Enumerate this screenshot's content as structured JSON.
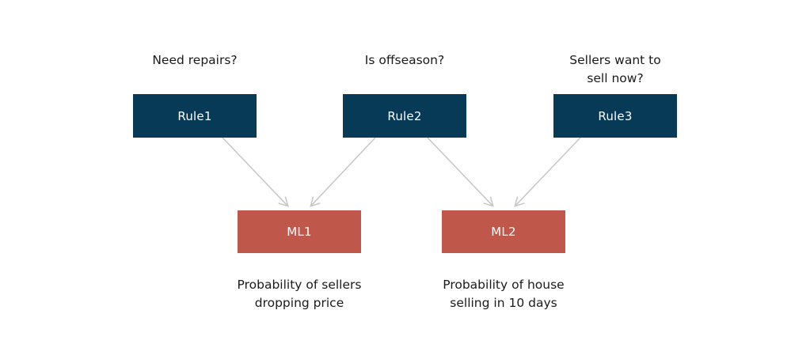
{
  "questions": {
    "q1": "Need repairs?",
    "q2": "Is offseason?",
    "q3_line1": "Sellers want to",
    "q3_line2": "sell now?"
  },
  "rules": {
    "rule1": "Rule1",
    "rule2": "Rule2",
    "rule3": "Rule3"
  },
  "models": {
    "ml1": "ML1",
    "ml2": "ML2"
  },
  "captions": {
    "ml1_line1": "Probability of sellers",
    "ml1_line2": "dropping price",
    "ml2_line1": "Probability of house",
    "ml2_line2": "selling in 10 days"
  },
  "colors": {
    "rule_box": "#063a57",
    "ml_box": "#c0574b",
    "arrow": "#c8c8c8",
    "text": "#1a1a1a"
  },
  "connections": [
    {
      "from": "Rule1",
      "to": "ML1"
    },
    {
      "from": "Rule2",
      "to": "ML1"
    },
    {
      "from": "Rule2",
      "to": "ML2"
    },
    {
      "from": "Rule3",
      "to": "ML2"
    }
  ]
}
